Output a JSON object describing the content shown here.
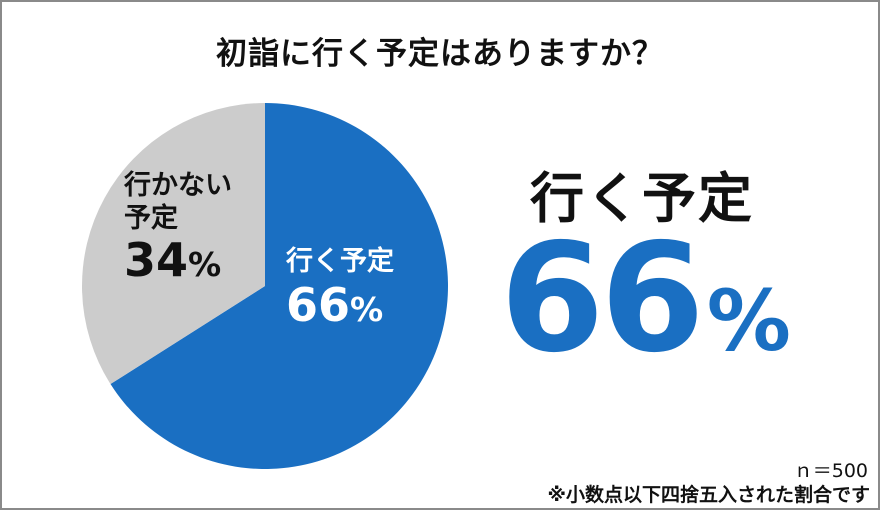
{
  "chart_data": {
    "type": "pie",
    "title": "初詣に行く予定はありますか？",
    "slices": [
      {
        "label": "行く予定",
        "value": 66,
        "display": "66",
        "color": "#1a6fc2"
      },
      {
        "label_line1": "行かない",
        "label_line2": "予定",
        "value": 34,
        "display": "34",
        "color": "#cccccc"
      }
    ],
    "unit": "%"
  },
  "highlight": {
    "category": "行く予定",
    "value": "66",
    "unit": "%"
  },
  "sample_note": "ｎ＝500",
  "footnote": "※小数点以下四捨五入された割合です"
}
